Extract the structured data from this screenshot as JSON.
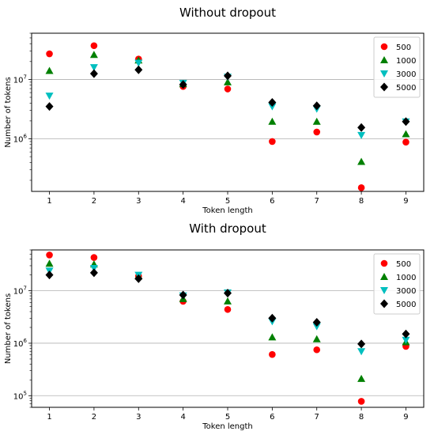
{
  "chart_data": [
    {
      "type": "scatter",
      "title": "Without dropout",
      "xlabel": "Token length",
      "ylabel": "Number of tokens",
      "y_scale": "log",
      "ylim": [
        130000,
        60000000
      ],
      "xlim": [
        0.6,
        9.4
      ],
      "x_ticks": [
        "1",
        "2",
        "3",
        "4",
        "5",
        "6",
        "7",
        "8",
        "9"
      ],
      "y_ticks": [
        {
          "label": "10",
          "exp": "6",
          "value": 1000000
        },
        {
          "label": "10",
          "exp": "7",
          "value": 10000000
        }
      ],
      "grid": "horizontal at major ticks",
      "legend": "top-right",
      "x": [
        1,
        2,
        3,
        4,
        5,
        6,
        7,
        8,
        9
      ],
      "series": [
        {
          "name": "500",
          "color": "#ff0000",
          "marker": "circle",
          "values": [
            27000000,
            37000000,
            22000000,
            7600000,
            6900000,
            900000,
            1300000,
            150000,
            880000
          ]
        },
        {
          "name": "1000",
          "color": "#008000",
          "marker": "triangle-up",
          "values": [
            14000000,
            26000000,
            21000000,
            8400000,
            9000000,
            1950000,
            1950000,
            410000,
            1200000
          ]
        },
        {
          "name": "3000",
          "color": "#00bfbf",
          "marker": "triangle-down",
          "values": [
            5300000,
            16000000,
            19000000,
            8700000,
            11000000,
            3500000,
            3200000,
            1150000,
            1950000
          ]
        },
        {
          "name": "5000",
          "color": "#000000",
          "marker": "diamond",
          "values": [
            3500000,
            12500000,
            14500000,
            8200000,
            11500000,
            4100000,
            3600000,
            1550000,
            1950000
          ]
        }
      ]
    },
    {
      "type": "scatter",
      "title": "With dropout",
      "xlabel": "Token length",
      "ylabel": "Number of tokens",
      "y_scale": "log",
      "ylim": [
        60000,
        60000000
      ],
      "xlim": [
        0.6,
        9.4
      ],
      "x_ticks": [
        "1",
        "2",
        "3",
        "4",
        "5",
        "6",
        "7",
        "8",
        "9"
      ],
      "y_ticks": [
        {
          "label": "10",
          "exp": "5",
          "value": 100000
        },
        {
          "label": "10",
          "exp": "6",
          "value": 1000000
        },
        {
          "label": "10",
          "exp": "7",
          "value": 10000000
        }
      ],
      "grid": "horizontal at major ticks",
      "legend": "top-right",
      "x": [
        1,
        2,
        3,
        4,
        5,
        6,
        7,
        8,
        9
      ],
      "series": [
        {
          "name": "500",
          "color": "#ff0000",
          "marker": "circle",
          "values": [
            48000000,
            43000000,
            19000000,
            6300000,
            4400000,
            610000,
            750000,
            78000,
            870000
          ]
        },
        {
          "name": "1000",
          "color": "#008000",
          "marker": "triangle-up",
          "values": [
            33000000,
            32000000,
            19000000,
            7000000,
            6300000,
            1300000,
            1200000,
            210000,
            1050000
          ]
        },
        {
          "name": "3000",
          "color": "#00bfbf",
          "marker": "triangle-down",
          "values": [
            24000000,
            27000000,
            20000000,
            8100000,
            9200000,
            2600000,
            2100000,
            700000,
            1150000
          ]
        },
        {
          "name": "5000",
          "color": "#000000",
          "marker": "diamond",
          "values": [
            20000000,
            22000000,
            17000000,
            8300000,
            9000000,
            3000000,
            2500000,
            970000,
            1500000
          ]
        }
      ]
    }
  ]
}
